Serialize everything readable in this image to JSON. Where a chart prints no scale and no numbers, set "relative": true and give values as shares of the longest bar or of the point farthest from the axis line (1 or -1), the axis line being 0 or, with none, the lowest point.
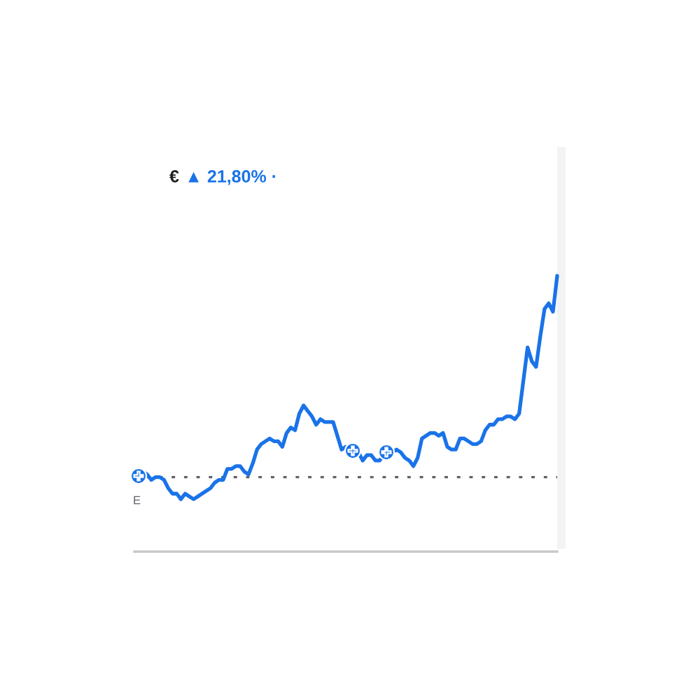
{
  "chart_data": {
    "type": "line",
    "title": "€",
    "subtitle": "▲ 21,80% ·",
    "relative": true,
    "categories": [
      null,
      null,
      null,
      null,
      null,
      null,
      null,
      null,
      null,
      null,
      null,
      null,
      null,
      null,
      null,
      null,
      null,
      null,
      null,
      null,
      null,
      null,
      null,
      null,
      null,
      null,
      null,
      null,
      null,
      null,
      null,
      null,
      null,
      null,
      null,
      null,
      null,
      null,
      null,
      null,
      null,
      null,
      null,
      null,
      null,
      null,
      null,
      null,
      null,
      null,
      null,
      null,
      null,
      null,
      null,
      null,
      null,
      null,
      null,
      null,
      null,
      null,
      null,
      null,
      null,
      null,
      null,
      null,
      null,
      null,
      null,
      null,
      null,
      null,
      null,
      null,
      null,
      null,
      null,
      null,
      null,
      null,
      null,
      null,
      null,
      null,
      null,
      null,
      null,
      null,
      null,
      null,
      null,
      null,
      null,
      null,
      null,
      null,
      null,
      null,
      null
    ],
    "series": [
      {
        "color": "#1a73e8",
        "values": [
          0.27,
          0.28,
          0.29,
          0.28,
          0.26,
          0.27,
          0.27,
          0.26,
          0.23,
          0.21,
          0.21,
          0.19,
          0.21,
          0.2,
          0.19,
          0.2,
          0.21,
          0.22,
          0.23,
          0.25,
          0.26,
          0.26,
          0.3,
          0.3,
          0.31,
          0.31,
          0.29,
          0.28,
          0.32,
          0.37,
          0.39,
          0.4,
          0.41,
          0.4,
          0.4,
          0.38,
          0.43,
          0.45,
          0.44,
          0.5,
          0.53,
          0.51,
          0.49,
          0.46,
          0.48,
          0.47,
          0.47,
          0.47,
          0.42,
          0.37,
          0.38,
          0.37,
          0.36,
          0.36,
          0.33,
          0.35,
          0.35,
          0.33,
          0.33,
          0.35,
          0.36,
          0.36,
          0.37,
          0.36,
          0.34,
          0.33,
          0.31,
          0.34,
          0.41,
          0.42,
          0.43,
          0.43,
          0.42,
          0.43,
          0.38,
          0.37,
          0.37,
          0.41,
          0.41,
          0.4,
          0.39,
          0.39,
          0.4,
          0.44,
          0.46,
          0.46,
          0.48,
          0.48,
          0.49,
          0.49,
          0.48,
          0.5,
          0.62,
          0.74,
          0.69,
          0.67,
          0.78,
          0.88,
          0.9,
          0.87,
          1
        ]
      }
    ],
    "ref_lines": [
      {
        "axis": "y",
        "value": 0.27,
        "color": "#5f6368",
        "line_style": "dotted"
      }
    ],
    "annotations": [
      "E"
    ]
  }
}
